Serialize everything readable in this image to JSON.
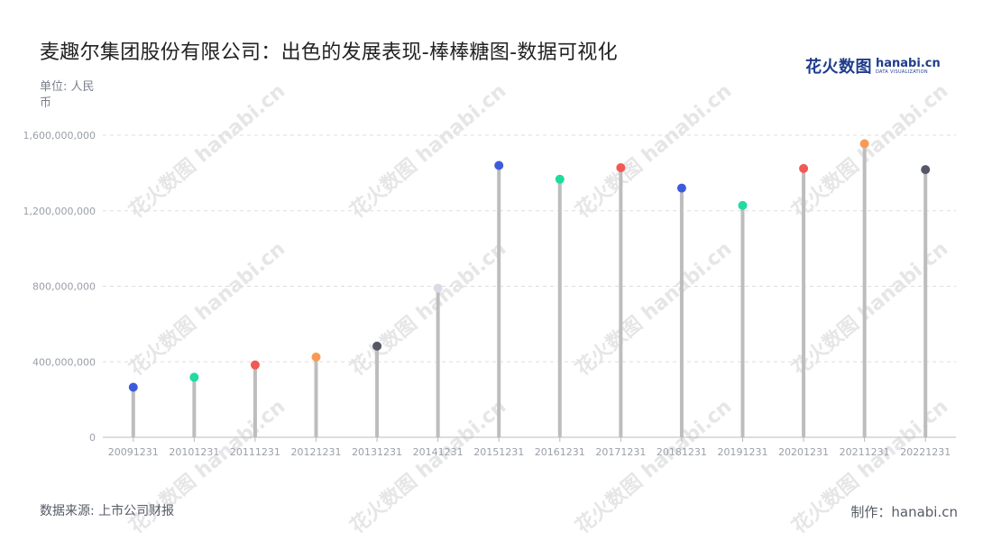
{
  "title": "麦趣尔集团股份有限公司：出色的发展表现-棒棒糖图-数据可视化",
  "unit": "单位: 人民币",
  "source": "数据来源: 上市公司财报",
  "credit": "制作：hanabi.cn",
  "logo": {
    "cn": "花火数图",
    "en": "hanabi.cn",
    "sub": "DATA VISUALIZATION"
  },
  "watermark": "花火数图 hanabi.cn",
  "colors": {
    "stem": "#bdbdbd",
    "grid": "#dddddd",
    "axis": "#bbbbbb",
    "tick_text": "#9a9fa8"
  },
  "chart_data": {
    "type": "lollipop",
    "categories": [
      "20091231",
      "20101231",
      "20111231",
      "20121231",
      "20131231",
      "20141231",
      "20151231",
      "20161231",
      "20171231",
      "20181231",
      "20191231",
      "20201231",
      "20211231",
      "20221231"
    ],
    "values": [
      265000000,
      318000000,
      383000000,
      425000000,
      483000000,
      790000000,
      1440000000,
      1367000000,
      1428000000,
      1320000000,
      1228000000,
      1424000000,
      1555000000,
      1418000000
    ],
    "dot_colors": [
      "#3c5bdc",
      "#20dba0",
      "#f05a55",
      "#f89a55",
      "#555766",
      "#dadbe6",
      "#3c5bdc",
      "#20dba0",
      "#f05a55",
      "#3c5bdc",
      "#20dba0",
      "#f05a55",
      "#f89a55",
      "#555766"
    ],
    "yticks": [
      0,
      400000000,
      800000000,
      1200000000,
      1600000000
    ],
    "ytick_labels": [
      "0",
      "400,000,000",
      "800,000,000",
      "1,200,000,000",
      "1,600,000,000"
    ],
    "ylim": [
      0,
      1600000000
    ],
    "grid": true
  }
}
